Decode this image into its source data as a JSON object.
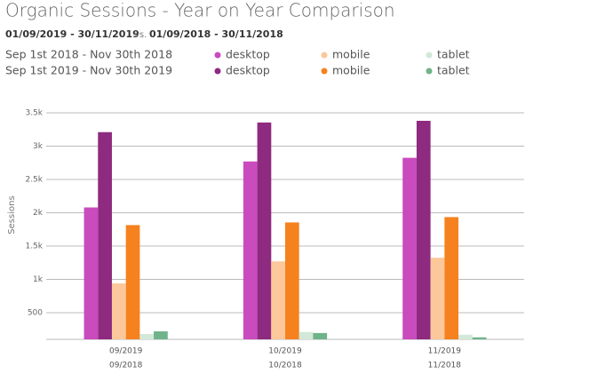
{
  "chart_data": {
    "type": "bar",
    "title": "Organic Sessions - Year on Year Comparison",
    "subtitle": [
      "01/09/2019 - 30/11/2019",
      "vs.",
      "01/09/2018 - 30/11/2018"
    ],
    "legend_groups": [
      "Sep 1st 2018 - Nov 30th 2018",
      "Sep 1st 2019 - Nov 30th 2019"
    ],
    "y_label": "Sessions",
    "categories": [
      [
        "09/2019",
        "09/2018"
      ],
      [
        "10/2019",
        "10/2018"
      ],
      [
        "11/2019",
        "11/2018"
      ]
    ],
    "series": [
      {
        "name": "desktop",
        "color": "#c94bbd",
        "values": [
          2080,
          2770,
          2825
        ]
      },
      {
        "name": "desktop",
        "color": "#8e2a7f",
        "values": [
          3210,
          3355,
          3380
        ]
      },
      {
        "name": "mobile",
        "color": "#fcc89b",
        "values": [
          940,
          1270,
          1325
        ]
      },
      {
        "name": "mobile",
        "color": "#f5821f",
        "values": [
          1815,
          1855,
          1935
        ]
      },
      {
        "name": "tablet",
        "color": "#d3e8d8",
        "values": [
          180,
          210,
          170
        ]
      },
      {
        "name": "tablet",
        "color": "#6fb38a",
        "values": [
          220,
          195,
          130
        ]
      }
    ],
    "ylim": [
      100,
      3500
    ],
    "yticks": [
      {
        "value": 500,
        "label": "500"
      },
      {
        "value": 1000,
        "label": "1k"
      },
      {
        "value": 1500,
        "label": "1.5k"
      },
      {
        "value": 2000,
        "label": "2k"
      },
      {
        "value": 2500,
        "label": "2.5k"
      },
      {
        "value": 3000,
        "label": "3k"
      },
      {
        "value": 3500,
        "label": "3.5k"
      }
    ],
    "grid": true
  }
}
